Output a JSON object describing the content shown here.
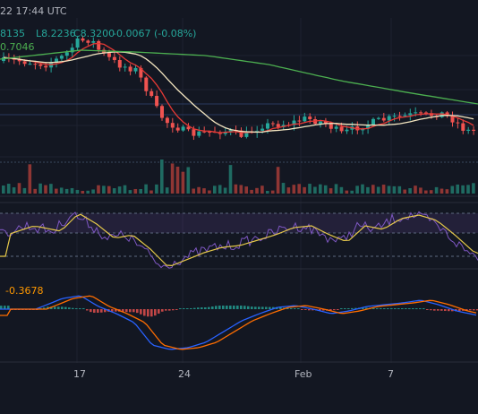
{
  "header": {
    "timestamp": "22 17:44 UTC",
    "ohlc_open_fragment": "8135",
    "ohlc_low": "L8.2236",
    "ohlc_close": "C8.3200",
    "change": "-0.0067 (-0.08%)",
    "ma_value": "0.7046",
    "macd_value": "-0.3678"
  },
  "colors": {
    "background": "#131722",
    "up": "#26a69a",
    "down": "#ef5350",
    "ma_fast": "#e53935",
    "ma_mid": "#f3e5c0",
    "ma_slow": "#4caf50",
    "rsi": "#7e57c2",
    "rsi_ma": "#e6c94a",
    "macd": "#2962ff",
    "signal": "#ff6d00"
  },
  "chart_data": {
    "type": "candlestick",
    "x_labels": [
      "17",
      "24",
      "Feb",
      "7"
    ],
    "panes": [
      "price",
      "volume",
      "rsi",
      "macd"
    ]
  }
}
